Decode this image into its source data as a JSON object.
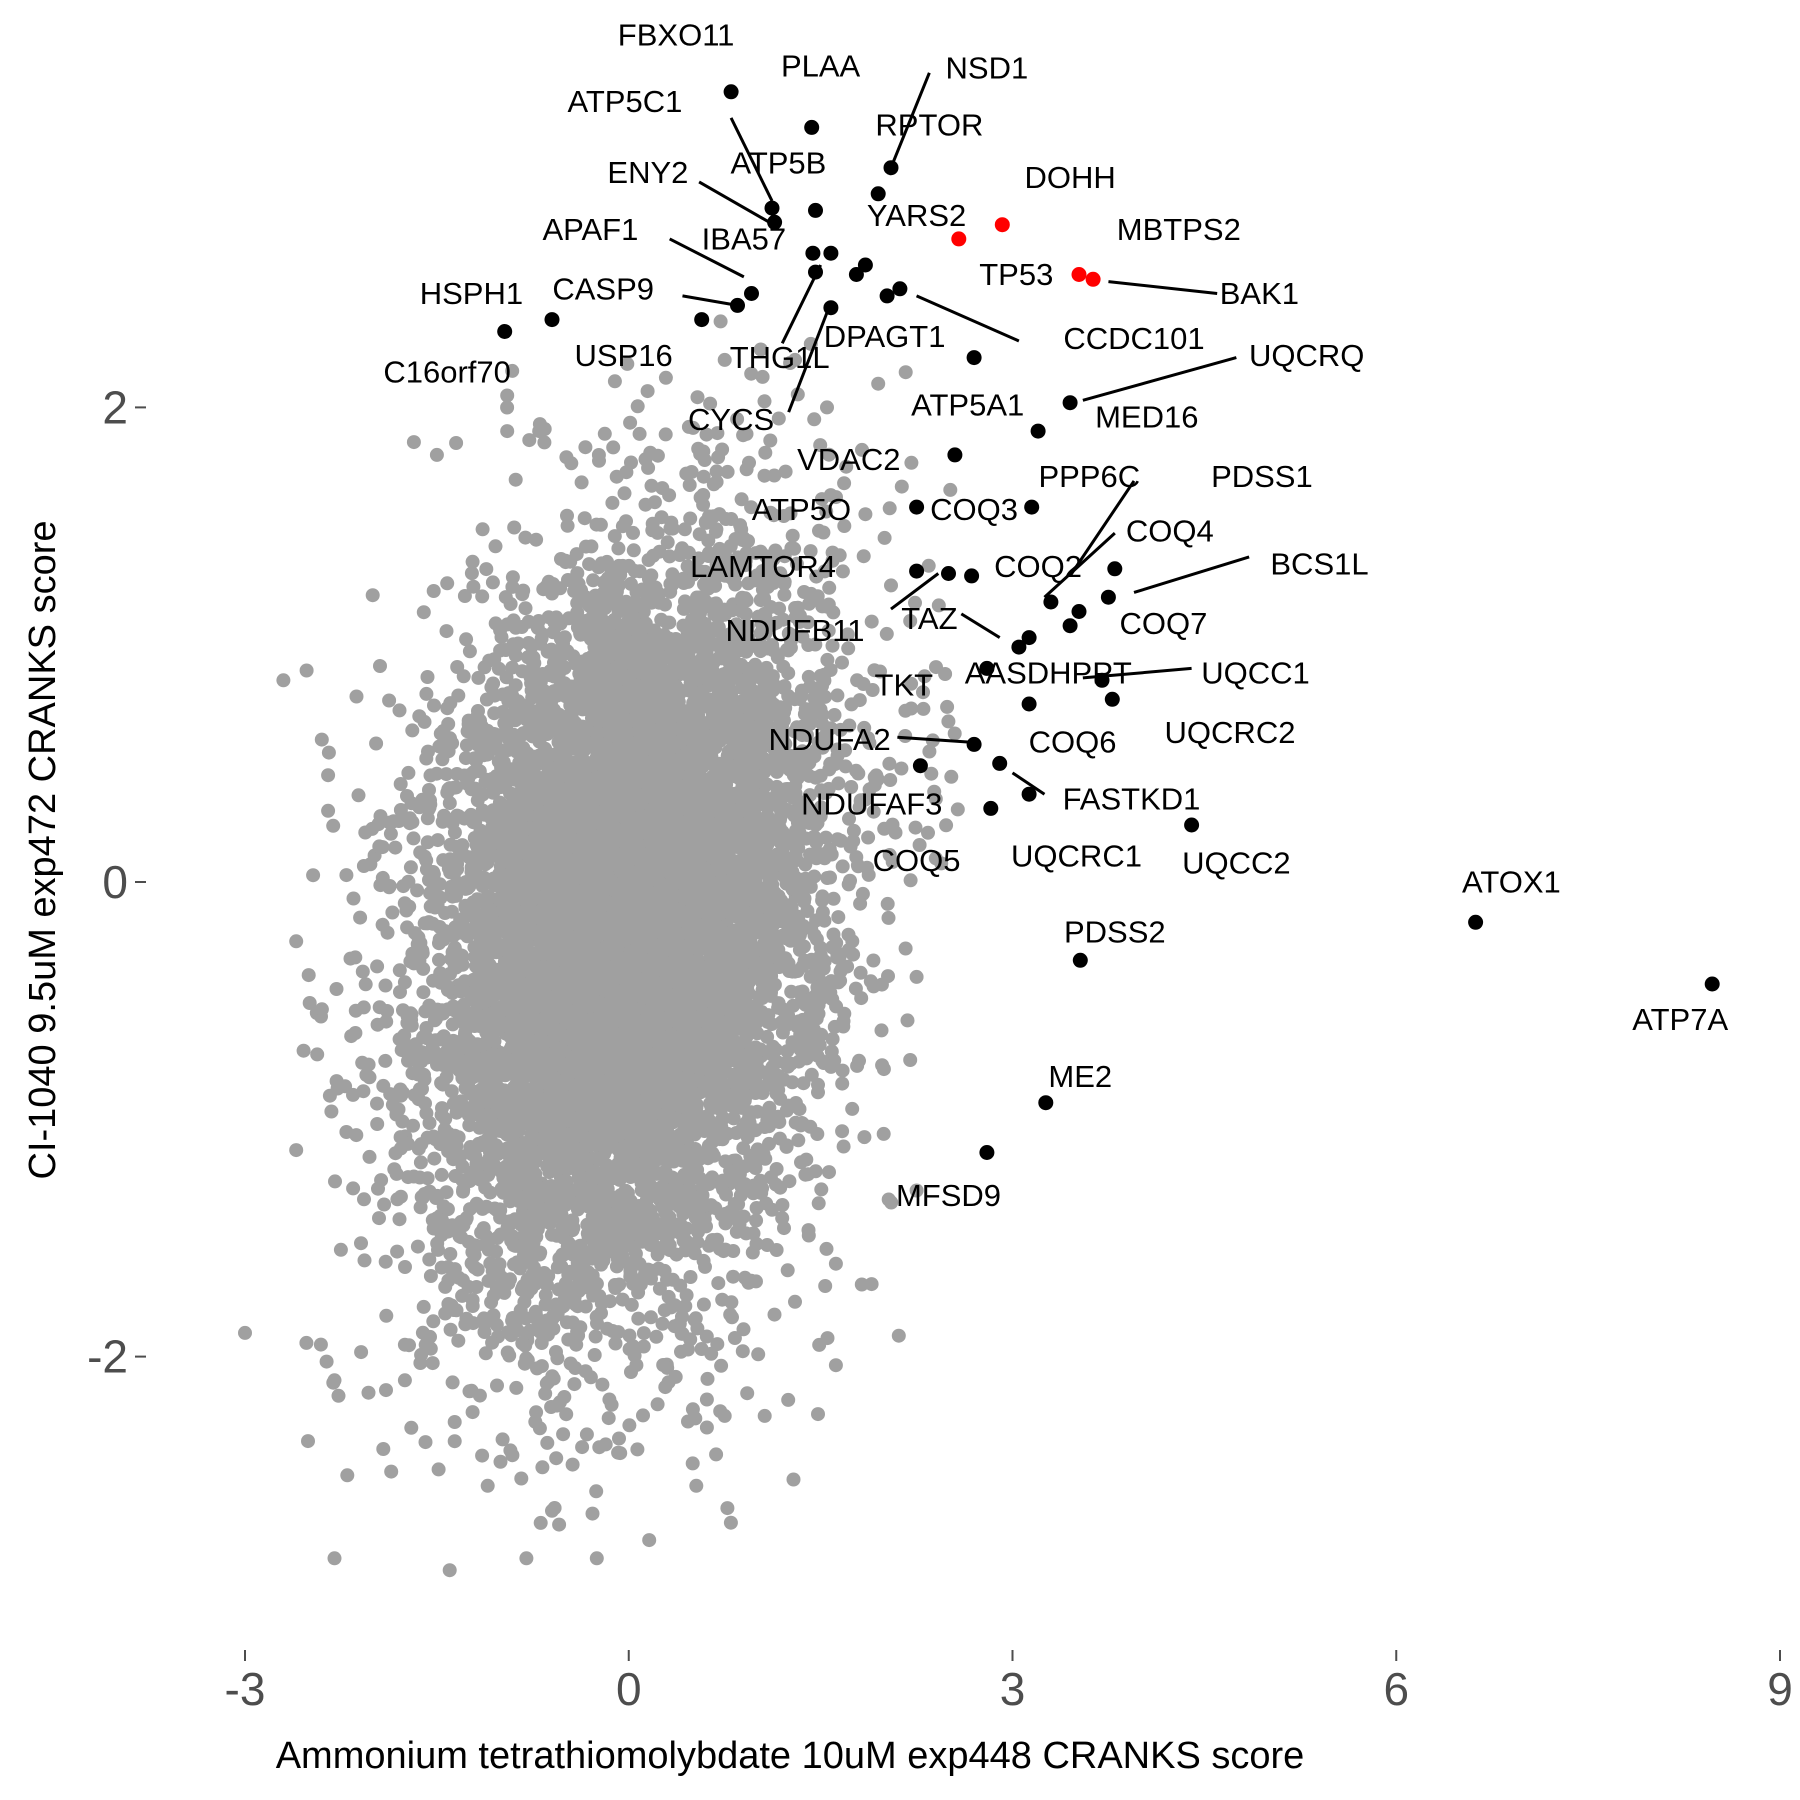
{
  "chart_data": {
    "type": "scatter",
    "title": "",
    "xlabel": "Ammonium tetrathiomolybdate 10uM exp448 CRANKS score",
    "ylabel": "CI-1040 9.5uM exp472 CRANKS score",
    "xlim": [
      -3.0,
      9.0
    ],
    "ylim": [
      -3.15,
      3.5
    ],
    "x_ticks": [
      -3,
      0,
      3,
      6,
      9
    ],
    "y_ticks": [
      -2,
      0,
      2
    ],
    "grid": false,
    "legend": "none",
    "colors": {
      "background_genes": "#a0a0a0",
      "highlighted_genes": "#000000",
      "red_genes": "#ff0000"
    },
    "background_cloud": {
      "description_free": true,
      "n_points": 9000,
      "center": [
        0.0,
        -0.2
      ],
      "sd": [
        0.78,
        0.78
      ],
      "correlation": 0.22
    },
    "background_outliers": [
      [
        -3.0,
        -1.9
      ],
      [
        -2.7,
        0.85
      ],
      [
        -2.6,
        -0.25
      ],
      [
        -2.6,
        -1.13
      ],
      [
        -2.4,
        0.6
      ],
      [
        -2.35,
        0.45
      ],
      [
        -2.35,
        0.3
      ],
      [
        -2.3,
        -2.1
      ],
      [
        -2.3,
        -2.85
      ],
      [
        -2.25,
        -1.55
      ],
      [
        -2.2,
        -2.5
      ],
      [
        -2.1,
        -0.15
      ],
      [
        -1.95,
        0.15
      ],
      [
        -1.9,
        -1.6
      ],
      [
        -1.75,
        -2.1
      ],
      [
        -1.75,
        -1.95
      ],
      [
        -1.7,
        -2.3
      ],
      [
        -1.4,
        -2.9
      ],
      [
        -1.5,
        1.8
      ],
      [
        -1.35,
        1.85
      ],
      [
        -0.95,
        2.05
      ],
      [
        -0.95,
        1.9
      ],
      [
        -0.7,
        1.9
      ],
      [
        0.5,
        -2.45
      ],
      [
        0.75,
        -2.25
      ],
      [
        -0.25,
        -2.85
      ],
      [
        -0.8,
        -2.85
      ],
      [
        -0.6,
        -2.65
      ],
      [
        0.75,
        2.2
      ],
      [
        1.45,
        1.95
      ],
      [
        1.7,
        1.75
      ],
      [
        1.85,
        1.55
      ],
      [
        2.0,
        1.45
      ],
      [
        2.05,
        1.25
      ],
      [
        2.2,
        1.1
      ],
      [
        2.3,
        0.8
      ],
      [
        2.35,
        0.55
      ],
      [
        2.4,
        0.35
      ],
      [
        2.4,
        0.1
      ],
      [
        2.25,
        -0.4
      ],
      [
        2.2,
        -0.75
      ],
      [
        2.25,
        -1.3
      ],
      [
        1.55,
        2.0
      ],
      [
        1.95,
        2.1
      ],
      [
        1.3,
        2.2
      ]
    ],
    "labeled_genes": [
      {
        "name": "FBXO11",
        "x": 0.8,
        "y": 3.33,
        "color": "black"
      },
      {
        "name": "PLAA",
        "x": 1.43,
        "y": 3.18,
        "color": "black"
      },
      {
        "name": "NSD1",
        "x": 2.05,
        "y": 3.01,
        "color": "black"
      },
      {
        "name": "RPTOR",
        "x": 1.95,
        "y": 2.9,
        "color": "black"
      },
      {
        "name": "ATP5C1",
        "x": 1.12,
        "y": 2.84,
        "color": "black"
      },
      {
        "name": "ATP5B",
        "x": 1.46,
        "y": 2.83,
        "color": "black"
      },
      {
        "name": "ENY2",
        "x": 1.14,
        "y": 2.78,
        "color": "black"
      },
      {
        "name": "DOHH",
        "x": 2.92,
        "y": 2.77,
        "color": "red"
      },
      {
        "name": "YARS2",
        "x": 2.58,
        "y": 2.71,
        "color": "red"
      },
      {
        "name": "IBA57",
        "x": 1.44,
        "y": 2.65,
        "color": "black"
      },
      {
        "name": "APAF1",
        "x": 1.58,
        "y": 2.65,
        "color": "black"
      },
      {
        "name": "IBA57 (2)",
        "x": 1.85,
        "y": 2.6,
        "color": "black"
      },
      {
        "name": "THG1L",
        "x": 1.46,
        "y": 2.57,
        "color": "black"
      },
      {
        "name": "MBTPS2",
        "x": 1.78,
        "y": 2.56,
        "color": "black"
      },
      {
        "name": "TP53",
        "x": 3.52,
        "y": 2.56,
        "color": "red"
      },
      {
        "name": "BAK1",
        "x": 3.63,
        "y": 2.54,
        "color": "red"
      },
      {
        "name": "CASP9",
        "x": 0.96,
        "y": 2.48,
        "color": "black"
      },
      {
        "name": "CCDC101",
        "x": 2.12,
        "y": 2.5,
        "color": "black"
      },
      {
        "name": "CCDC101 (2)",
        "x": 2.02,
        "y": 2.47,
        "color": "black"
      },
      {
        "name": "USP16",
        "x": 0.85,
        "y": 2.43,
        "color": "black"
      },
      {
        "name": "DPAGT1",
        "x": 1.58,
        "y": 2.42,
        "color": "black"
      },
      {
        "name": "HSPH1",
        "x": -0.6,
        "y": 2.37,
        "color": "black"
      },
      {
        "name": "USP16 (2)",
        "x": 0.57,
        "y": 2.37,
        "color": "black"
      },
      {
        "name": "C16orf70",
        "x": -0.97,
        "y": 2.32,
        "color": "black"
      },
      {
        "name": "ATP5A1",
        "x": 2.7,
        "y": 2.21,
        "color": "black"
      },
      {
        "name": "UQCRQ",
        "x": 3.45,
        "y": 2.02,
        "color": "black"
      },
      {
        "name": "MED16",
        "x": 3.2,
        "y": 1.9,
        "color": "black"
      },
      {
        "name": "VDAC2",
        "x": 2.55,
        "y": 1.8,
        "color": "black"
      },
      {
        "name": "PPP6C",
        "x": 3.15,
        "y": 1.58,
        "color": "black"
      },
      {
        "name": "ATP5O",
        "x": 2.25,
        "y": 1.58,
        "color": "black"
      },
      {
        "name": "PDSS1",
        "x": 3.8,
        "y": 1.32,
        "color": "black"
      },
      {
        "name": "LAMTOR4",
        "x": 2.25,
        "y": 1.31,
        "color": "black"
      },
      {
        "name": "NDUFB11",
        "x": 2.5,
        "y": 1.3,
        "color": "black"
      },
      {
        "name": "COQ2",
        "x": 2.68,
        "y": 1.29,
        "color": "black"
      },
      {
        "name": "BCS1L",
        "x": 3.75,
        "y": 1.2,
        "color": "black"
      },
      {
        "name": "COQ4",
        "x": 3.3,
        "y": 1.18,
        "color": "black"
      },
      {
        "name": "COQ7",
        "x": 3.52,
        "y": 1.14,
        "color": "black"
      },
      {
        "name": "COQ2 (2)",
        "x": 3.45,
        "y": 1.08,
        "color": "black"
      },
      {
        "name": "TAZ",
        "x": 3.13,
        "y": 1.03,
        "color": "black"
      },
      {
        "name": "AASDHPPT",
        "x": 3.05,
        "y": 0.99,
        "color": "black"
      },
      {
        "name": "TKT",
        "x": 2.8,
        "y": 0.9,
        "color": "black"
      },
      {
        "name": "UQCC1",
        "x": 3.7,
        "y": 0.85,
        "color": "black"
      },
      {
        "name": "UQCRC2",
        "x": 3.78,
        "y": 0.77,
        "color": "black"
      },
      {
        "name": "COQ6",
        "x": 3.13,
        "y": 0.75,
        "color": "black"
      },
      {
        "name": "NDUFA2",
        "x": 2.7,
        "y": 0.58,
        "color": "black"
      },
      {
        "name": "NDUFAF3",
        "x": 2.28,
        "y": 0.49,
        "color": "black"
      },
      {
        "name": "FASTKD1",
        "x": 2.9,
        "y": 0.5,
        "color": "black"
      },
      {
        "name": "FASTKD1 (2)",
        "x": 3.13,
        "y": 0.37,
        "color": "black"
      },
      {
        "name": "UQCRC1",
        "x": 2.83,
        "y": 0.31,
        "color": "black"
      },
      {
        "name": "UQCC2",
        "x": 4.4,
        "y": 0.24,
        "color": "black"
      },
      {
        "name": "ATOX1",
        "x": 6.62,
        "y": -0.17,
        "color": "black"
      },
      {
        "name": "PDSS2",
        "x": 3.53,
        "y": -0.33,
        "color": "black"
      },
      {
        "name": "ATP7A",
        "x": 8.47,
        "y": -0.43,
        "color": "black"
      },
      {
        "name": "ME2",
        "x": 3.26,
        "y": -0.93,
        "color": "black"
      },
      {
        "name": "MFSD9",
        "x": 2.8,
        "y": -1.14,
        "color": "black"
      }
    ],
    "annotations": [
      {
        "text": "FBXO11",
        "x": 0.37,
        "y": 3.56
      },
      {
        "text": "PLAA",
        "x": 1.5,
        "y": 3.43
      },
      {
        "text": "NSD1",
        "x": 2.8,
        "y": 3.42
      },
      {
        "text": "ATP5C1",
        "x": -0.03,
        "y": 3.28
      },
      {
        "text": "RPTOR",
        "x": 2.35,
        "y": 3.18
      },
      {
        "text": "ATP5B",
        "x": 1.17,
        "y": 3.02
      },
      {
        "text": "ENY2",
        "x": 0.15,
        "y": 2.98
      },
      {
        "text": "DOHH",
        "x": 3.45,
        "y": 2.96
      },
      {
        "text": "YARS2",
        "x": 2.25,
        "y": 2.8
      },
      {
        "text": "APAF1",
        "x": -0.3,
        "y": 2.74
      },
      {
        "text": "IBA57",
        "x": 0.9,
        "y": 2.7
      },
      {
        "text": "MBTPS2",
        "x": 4.3,
        "y": 2.74
      },
      {
        "text": "TP53",
        "x": 3.03,
        "y": 2.55
      },
      {
        "text": "BAK1",
        "x": 4.93,
        "y": 2.47
      },
      {
        "text": "HSPH1",
        "x": -1.23,
        "y": 2.47
      },
      {
        "text": "CASP9",
        "x": -0.2,
        "y": 2.49
      },
      {
        "text": "CCDC101",
        "x": 3.95,
        "y": 2.28
      },
      {
        "text": "DPAGT1",
        "x": 2.0,
        "y": 2.29
      },
      {
        "text": "THG1L",
        "x": 1.18,
        "y": 2.2
      },
      {
        "text": "USP16",
        "x": -0.04,
        "y": 2.21
      },
      {
        "text": "UQCRQ",
        "x": 5.3,
        "y": 2.21
      },
      {
        "text": "C16orf70",
        "x": -1.42,
        "y": 2.14
      },
      {
        "text": "ATP5A1",
        "x": 2.65,
        "y": 2.0
      },
      {
        "text": "CYCS",
        "x": 0.8,
        "y": 1.94
      },
      {
        "text": "MED16",
        "x": 4.05,
        "y": 1.95
      },
      {
        "text": "VDAC2",
        "x": 1.72,
        "y": 1.77
      },
      {
        "text": "PPP6C",
        "x": 3.6,
        "y": 1.7
      },
      {
        "text": "PDSS1",
        "x": 4.95,
        "y": 1.7
      },
      {
        "text": "ATP5O",
        "x": 1.35,
        "y": 1.56
      },
      {
        "text": "COQ3",
        "x": 2.7,
        "y": 1.56
      },
      {
        "text": "COQ4",
        "x": 4.23,
        "y": 1.47
      },
      {
        "text": "BCS1L",
        "x": 5.4,
        "y": 1.33
      },
      {
        "text": "LAMTOR4",
        "x": 1.05,
        "y": 1.32
      },
      {
        "text": "COQ2",
        "x": 3.2,
        "y": 1.32
      },
      {
        "text": "COQ7",
        "x": 4.18,
        "y": 1.08
      },
      {
        "text": "NDUFB11",
        "x": 1.3,
        "y": 1.05
      },
      {
        "text": "TAZ",
        "x": 2.35,
        "y": 1.1
      },
      {
        "text": "AASDHPPT",
        "x": 3.28,
        "y": 0.87
      },
      {
        "text": "UQCC1",
        "x": 4.9,
        "y": 0.87
      },
      {
        "text": "TKT",
        "x": 2.15,
        "y": 0.82
      },
      {
        "text": "UQCRC2",
        "x": 4.7,
        "y": 0.62
      },
      {
        "text": "NDUFA2",
        "x": 1.57,
        "y": 0.59
      },
      {
        "text": "COQ6",
        "x": 3.47,
        "y": 0.58
      },
      {
        "text": "FASTKD1",
        "x": 3.93,
        "y": 0.34
      },
      {
        "text": "NDUFAF3",
        "x": 1.9,
        "y": 0.32
      },
      {
        "text": "COQ5",
        "x": 2.25,
        "y": 0.08
      },
      {
        "text": "UQCRC1",
        "x": 3.5,
        "y": 0.1
      },
      {
        "text": "UQCC2",
        "x": 4.75,
        "y": 0.07
      },
      {
        "text": "ATOX1",
        "x": 6.9,
        "y": -0.01
      },
      {
        "text": "PDSS2",
        "x": 3.8,
        "y": -0.22
      },
      {
        "text": "ATP7A",
        "x": 8.22,
        "y": -0.59
      },
      {
        "text": "ME2",
        "x": 3.53,
        "y": -0.83
      },
      {
        "text": "MFSD9",
        "x": 2.5,
        "y": -1.33
      }
    ],
    "leader_lines": [
      [
        [
          0.8,
          3.22
        ],
        [
          1.12,
          2.87
        ]
      ],
      [
        [
          2.35,
          3.41
        ],
        [
          2.05,
          3.01
        ]
      ],
      [
        [
          0.55,
          2.95
        ],
        [
          1.1,
          2.78
        ]
      ],
      [
        [
          0.32,
          2.71
        ],
        [
          0.9,
          2.55
        ]
      ],
      [
        [
          0.42,
          2.47
        ],
        [
          0.85,
          2.43
        ]
      ],
      [
        [
          1.5,
          2.6
        ],
        [
          1.2,
          2.27
        ]
      ],
      [
        [
          1.55,
          2.4
        ],
        [
          1.25,
          1.98
        ]
      ],
      [
        [
          2.25,
          2.47
        ],
        [
          3.05,
          2.28
        ]
      ],
      [
        [
          3.75,
          2.53
        ],
        [
          4.6,
          2.48
        ]
      ],
      [
        [
          3.55,
          2.03
        ],
        [
          4.75,
          2.21
        ]
      ],
      [
        [
          2.05,
          1.15
        ],
        [
          2.42,
          1.3
        ]
      ],
      [
        [
          2.6,
          1.13
        ],
        [
          2.9,
          1.03
        ]
      ],
      [
        [
          3.45,
          1.29
        ],
        [
          3.95,
          1.69
        ]
      ],
      [
        [
          3.25,
          1.2
        ],
        [
          3.8,
          1.47
        ]
      ],
      [
        [
          3.95,
          1.22
        ],
        [
          4.85,
          1.37
        ]
      ],
      [
        [
          3.55,
          0.86
        ],
        [
          4.4,
          0.9
        ]
      ],
      [
        [
          2.1,
          0.61
        ],
        [
          2.65,
          0.59
        ]
      ],
      [
        [
          3.0,
          0.46
        ],
        [
          3.25,
          0.37
        ]
      ]
    ]
  }
}
